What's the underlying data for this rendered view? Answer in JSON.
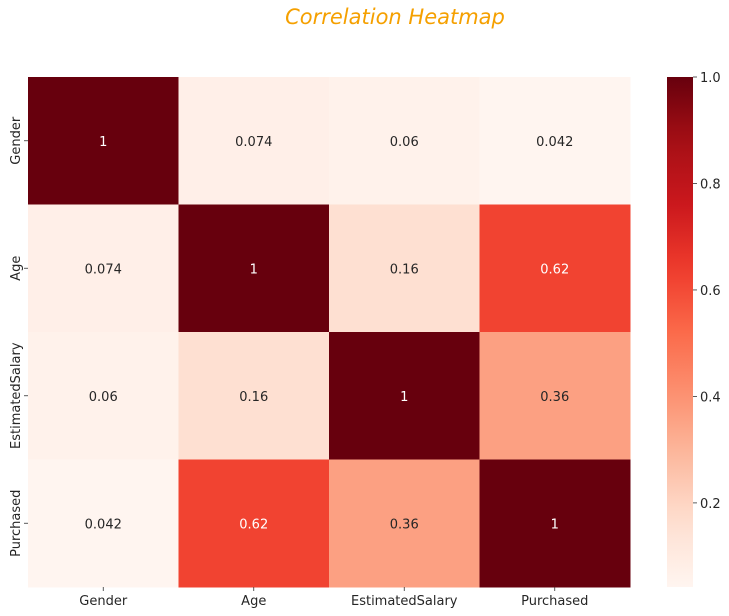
{
  "chart_data": {
    "type": "heatmap",
    "title": "Correlation Heatmap",
    "title_color": "#f5a000",
    "x_labels": [
      "Gender",
      "Age",
      "EstimatedSalary",
      "Purchased"
    ],
    "y_labels": [
      "Gender",
      "Age",
      "EstimatedSalary",
      "Purchased"
    ],
    "values": [
      [
        1,
        0.074,
        0.06,
        0.042
      ],
      [
        0.074,
        1,
        0.16,
        0.62
      ],
      [
        0.06,
        0.16,
        1,
        0.36
      ],
      [
        0.042,
        0.62,
        0.36,
        1
      ]
    ],
    "colormap": "Reds",
    "vmin": 0.042,
    "vmax": 1.0,
    "colorbar_ticks": [
      "0.2",
      "0.4",
      "0.6",
      "0.8",
      "1.0"
    ],
    "annotations": true,
    "legend_position": "right"
  }
}
